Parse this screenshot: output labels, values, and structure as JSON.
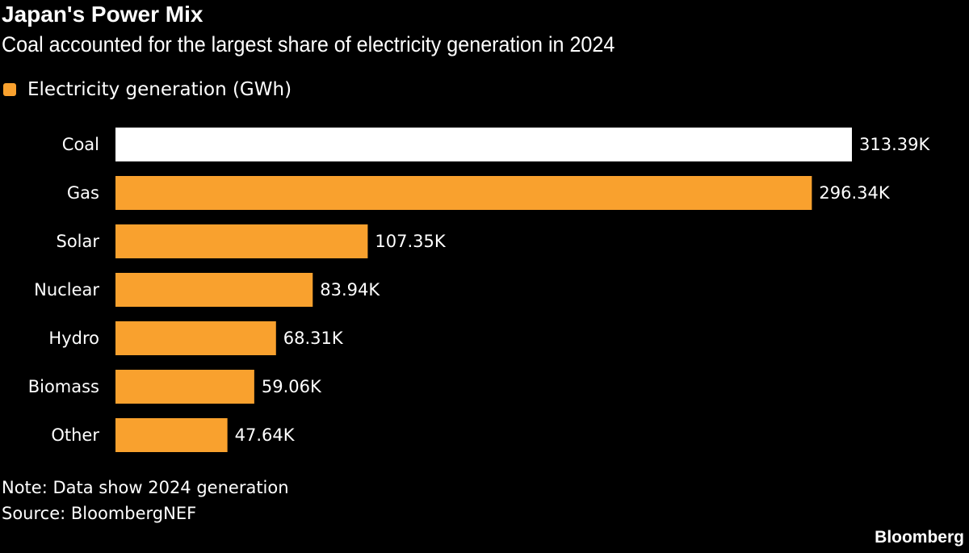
{
  "title": "Japan's Power Mix",
  "subtitle": "Coal accounted for the largest share of electricity generation in 2024",
  "note": "Note: Data show 2024 generation",
  "source": "Source: BloombergNEF",
  "logo": "Bloomberg",
  "colors": {
    "bar": "#F9A12E",
    "highlight": "#FFFFFF",
    "background": "#000000"
  },
  "chart_data": {
    "type": "bar",
    "orientation": "horizontal",
    "title": "Japan's Power Mix",
    "subtitle": "Coal accounted for the largest share of electricity generation in 2024",
    "legend_position": "top-left",
    "grid": false,
    "categories": [
      "Coal",
      "Gas",
      "Solar",
      "Nuclear",
      "Hydro",
      "Biomass",
      "Other"
    ],
    "series": [
      {
        "name": "Electricity generation (GWh)",
        "values": [
          313390,
          296340,
          107350,
          83940,
          68310,
          59060,
          47640
        ],
        "labels": [
          "313.39K",
          "296.34K",
          "107.35K",
          "83.94K",
          "68.31K",
          "59.06K",
          "47.64K"
        ]
      }
    ],
    "highlighted_category": "Coal",
    "xlim": [
      0,
      313390
    ]
  }
}
